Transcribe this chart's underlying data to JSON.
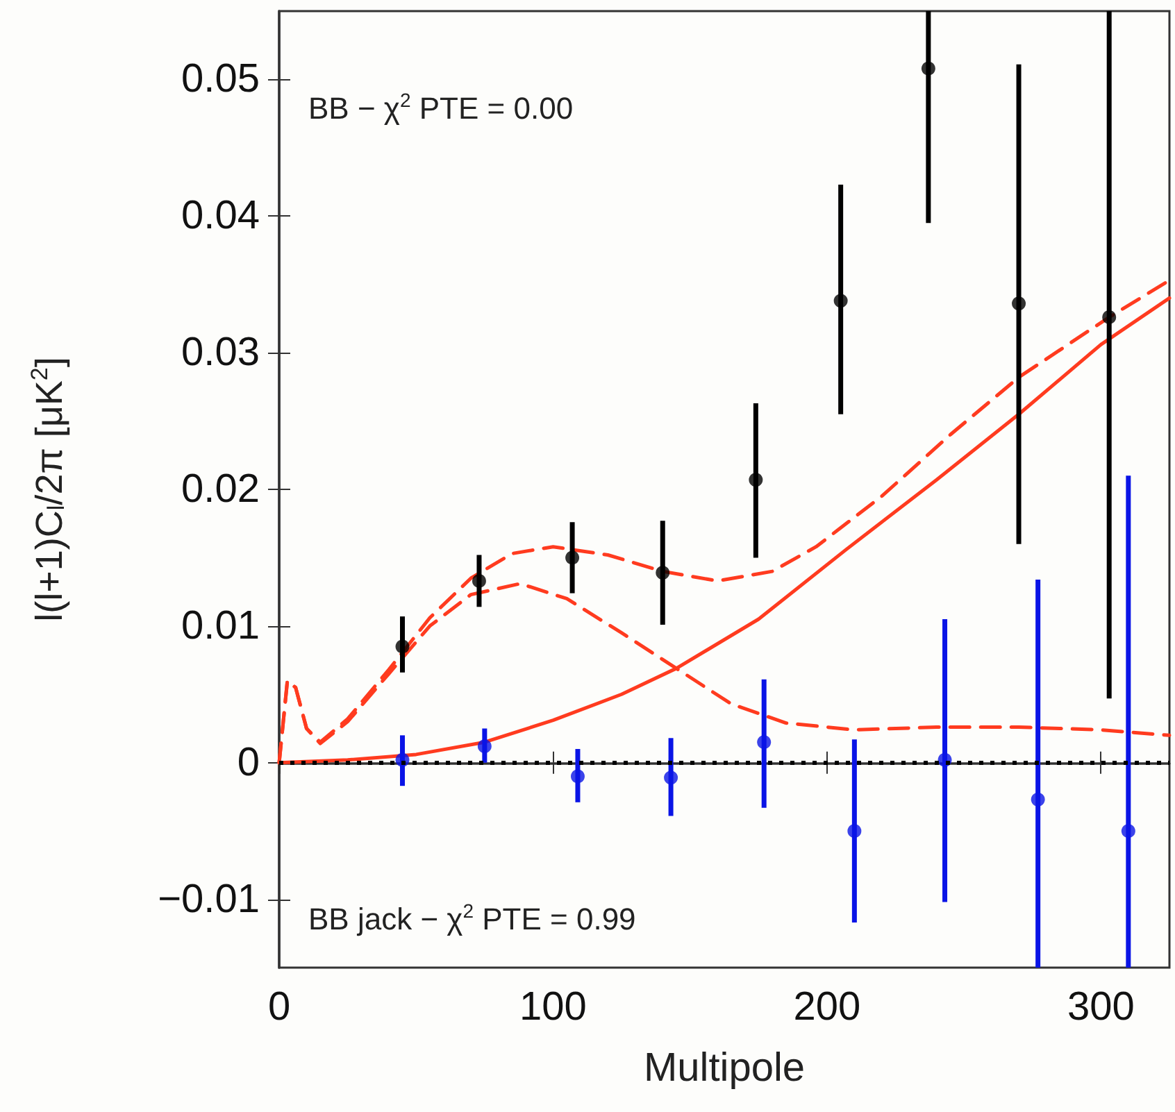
{
  "chart_data": {
    "type": "scatter",
    "xlabel": "Multipole",
    "ylabel": "l(l+1)C$_{l}$/2π [μK$^{2}$]",
    "annotations": [
      "BB − χ$^{2}$ PTE = 0.00",
      "BB jack − χ$^{2}$ PTE = 0.99"
    ],
    "xlim": [
      0,
      325
    ],
    "xticks": [
      0,
      100,
      200,
      300
    ],
    "ylim": [
      -0.015,
      0.055
    ],
    "yticks": [
      -0.01,
      0,
      0.01,
      0.02,
      0.03,
      0.04,
      0.05
    ],
    "ref_lines": [
      {
        "axis": "y",
        "value": 0,
        "color": "#000000",
        "line_style": "dotted"
      }
    ],
    "series": [
      {
        "type": "line",
        "marker": "none",
        "color": "#ff3b1f",
        "line_style": "solid",
        "x": [
          0,
          25,
          50,
          75,
          100,
          125,
          145,
          175,
          207,
          240,
          270,
          300,
          325
        ],
        "values": [
          0,
          0.0002,
          0.0006,
          0.0015,
          0.0031,
          0.005,
          0.0069,
          0.0105,
          0.0156,
          0.0207,
          0.0255,
          0.0306,
          0.034
        ]
      },
      {
        "type": "line",
        "marker": "none",
        "color": "#ff3b1f",
        "line_style": "dashed",
        "x": [
          0,
          3,
          6,
          10,
          15,
          25,
          40,
          55,
          70,
          88,
          105,
          125,
          145,
          165,
          185,
          210,
          240,
          270,
          300,
          325
        ],
        "values": [
          0,
          0.006,
          0.0055,
          0.0025,
          0.0014,
          0.003,
          0.0065,
          0.01,
          0.0123,
          0.0131,
          0.012,
          0.0095,
          0.0069,
          0.0043,
          0.0029,
          0.0024,
          0.0026,
          0.0026,
          0.0024,
          0.002
        ]
      },
      {
        "type": "line",
        "marker": "none",
        "color": "#ff3b1f",
        "line_style": "dashed",
        "x": [
          0,
          3,
          6,
          10,
          15,
          25,
          40,
          55,
          70,
          85,
          100,
          120,
          140,
          160,
          180,
          196,
          220,
          245,
          270,
          303,
          325
        ],
        "values": [
          0,
          0.006,
          0.0055,
          0.0025,
          0.0015,
          0.0032,
          0.0068,
          0.0106,
          0.0135,
          0.0153,
          0.0158,
          0.0152,
          0.014,
          0.0133,
          0.014,
          0.0158,
          0.0195,
          0.024,
          0.0282,
          0.0326,
          0.0353
        ]
      },
      {
        "marker": "circle",
        "color": "#000000",
        "x": [
          45,
          73,
          107,
          140,
          174,
          205,
          237,
          270,
          303
        ],
        "values": [
          0.0085,
          0.0133,
          0.015,
          0.0139,
          0.0207,
          0.0338,
          0.0508,
          0.0336,
          0.0326
        ],
        "errors": [
          [
            0.0066,
            0.0107
          ],
          [
            0.0114,
            0.0152
          ],
          [
            0.0124,
            0.0176
          ],
          [
            0.0101,
            0.0177
          ],
          [
            0.015,
            0.0263
          ],
          [
            0.0255,
            0.0423
          ],
          [
            0.0395,
            0.055
          ],
          [
            0.016,
            0.0511
          ],
          [
            0.0047,
            0.055
          ]
        ]
      },
      {
        "marker": "circle",
        "color": "#0a14e6",
        "x": [
          45,
          75,
          109,
          143,
          177,
          210,
          243,
          277,
          310
        ],
        "values": [
          0.0002,
          0.0012,
          -0.001,
          -0.0011,
          0.0015,
          -0.005,
          0.0002,
          -0.0027,
          -0.005
        ],
        "errors": [
          [
            -0.0017,
            0.002
          ],
          [
            0,
            0.0025
          ],
          [
            -0.0029,
            0.001
          ],
          [
            -0.0039,
            0.0018
          ],
          [
            -0.0033,
            0.0061
          ],
          [
            -0.0117,
            0.0017
          ],
          [
            -0.0102,
            0.0105
          ],
          [
            -0.015,
            0.0134
          ],
          [
            -0.015,
            0.021
          ]
        ]
      }
    ]
  }
}
